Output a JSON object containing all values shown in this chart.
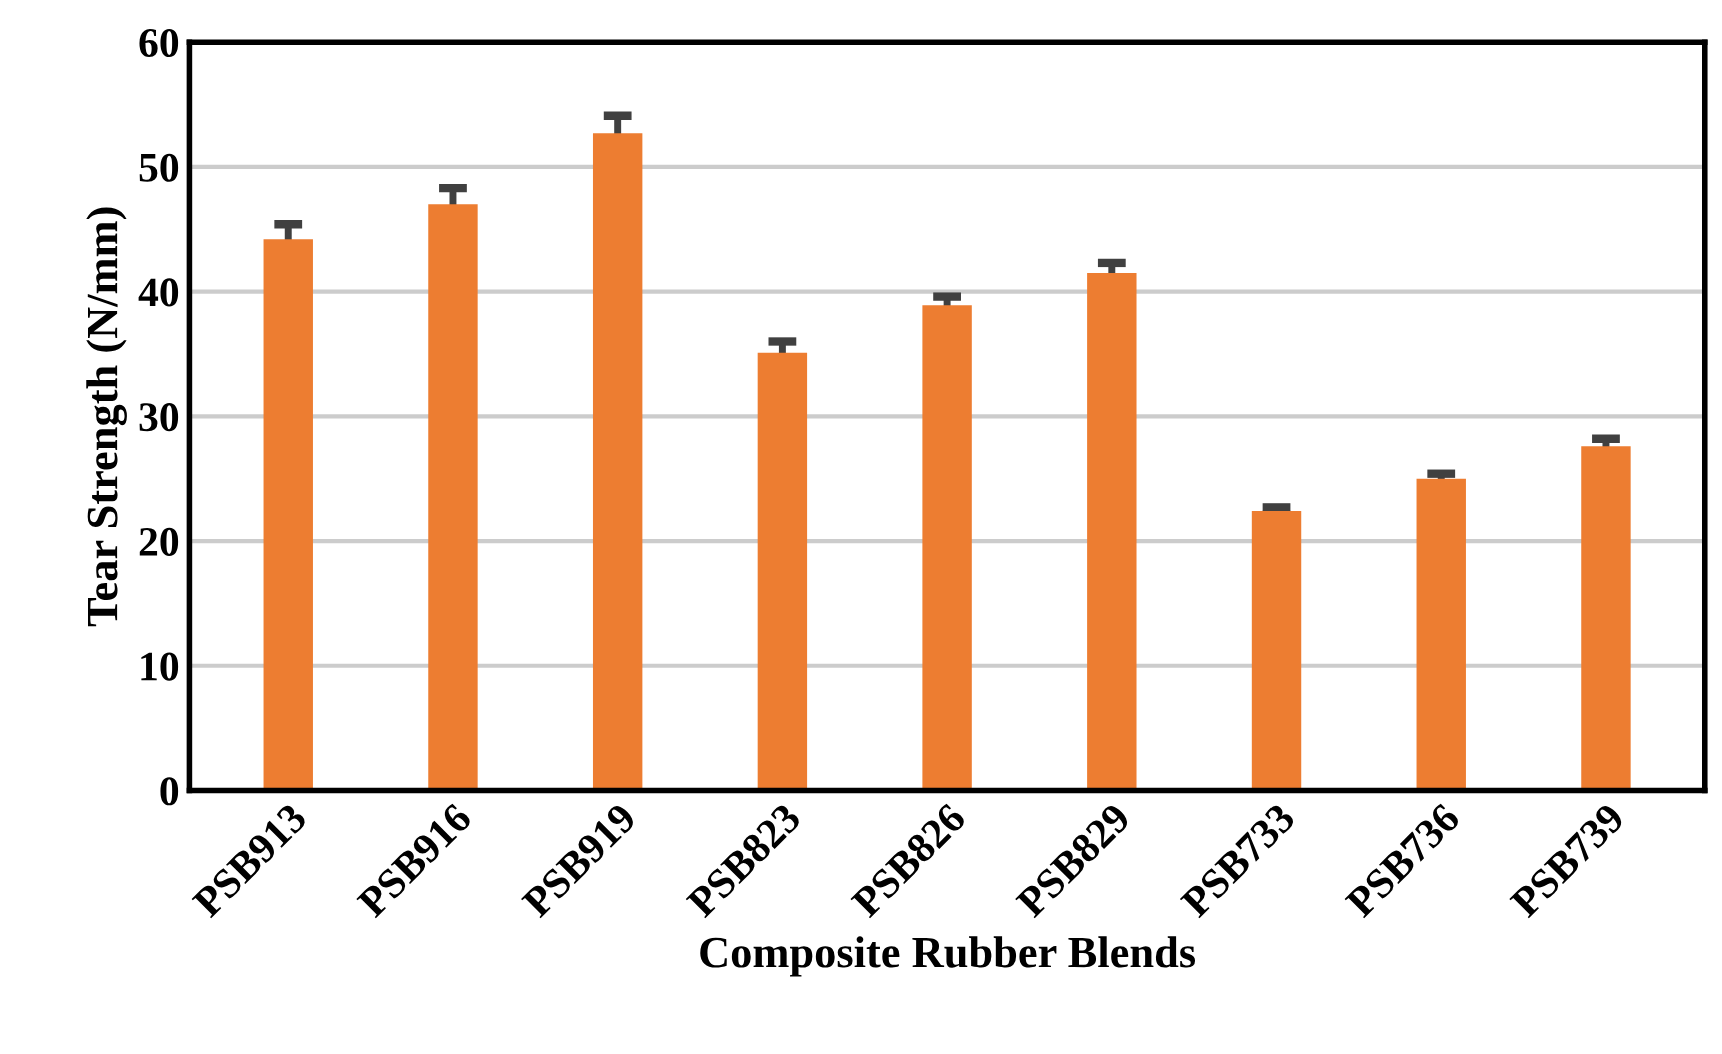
{
  "chart_data": {
    "type": "bar",
    "xlabel": "Composite Rubber Blends",
    "ylabel": "Tear Strength (N/mm)",
    "categories": [
      "PSB913",
      "PSB916",
      "PSB919",
      "PSB823",
      "PSB826",
      "PSB829",
      "PSB733",
      "PSB736",
      "PSB739"
    ],
    "values": [
      44.2,
      47.0,
      52.7,
      35.1,
      38.9,
      41.5,
      22.4,
      25.0,
      27.6
    ],
    "errors": [
      1.2,
      1.3,
      1.4,
      0.9,
      0.7,
      0.8,
      0.3,
      0.4,
      0.6
    ],
    "color": "#ed7d31",
    "ylim": [
      0,
      60
    ],
    "yticks": [
      0,
      10,
      20,
      30,
      40,
      50,
      60
    ],
    "grid": "y",
    "legend": false
  }
}
